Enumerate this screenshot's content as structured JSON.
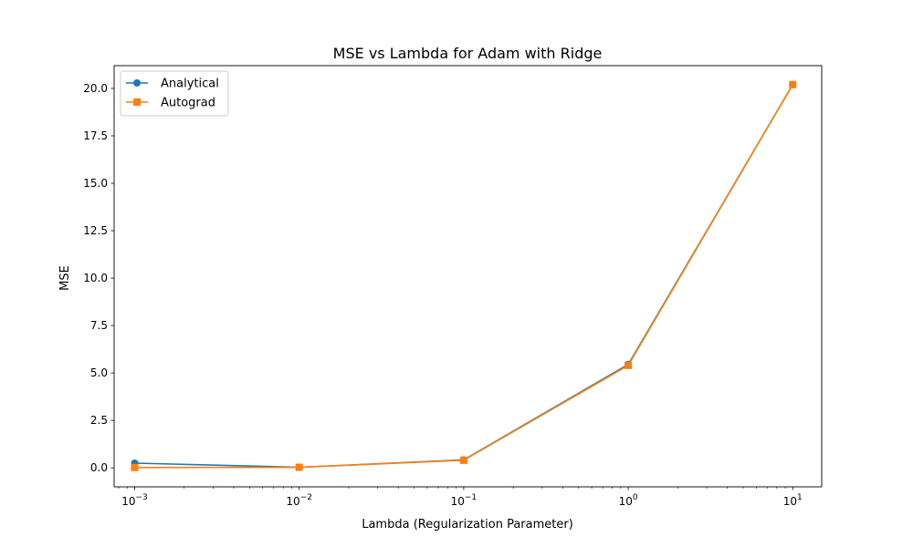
{
  "chart_data": {
    "type": "line",
    "title": "MSE vs Lambda for Adam with Ridge",
    "xlabel": "Lambda (Regularization Parameter)",
    "ylabel": "MSE",
    "xscale": "log",
    "x": [
      0.001,
      0.01,
      0.1,
      1,
      10
    ],
    "xlim": [
      0.00075,
      15
    ],
    "ylim": [
      -1.0,
      21.2
    ],
    "xticks": [
      {
        "value": 0.001,
        "base": "10",
        "exp": "−3"
      },
      {
        "value": 0.01,
        "base": "10",
        "exp": "−2"
      },
      {
        "value": 0.1,
        "base": "10",
        "exp": "−1"
      },
      {
        "value": 1,
        "base": "10",
        "exp": "0"
      },
      {
        "value": 10,
        "base": "10",
        "exp": "1"
      }
    ],
    "yticks": [
      {
        "value": 0.0,
        "label": "0.0"
      },
      {
        "value": 2.5,
        "label": "2.5"
      },
      {
        "value": 5.0,
        "label": "5.0"
      },
      {
        "value": 7.5,
        "label": "7.5"
      },
      {
        "value": 10.0,
        "label": "10.0"
      },
      {
        "value": 12.5,
        "label": "12.5"
      },
      {
        "value": 15.0,
        "label": "15.0"
      },
      {
        "value": 17.5,
        "label": "17.5"
      },
      {
        "value": 20.0,
        "label": "20.0"
      }
    ],
    "grid": false,
    "legend_position": "top-left",
    "series": [
      {
        "name": "Analytical",
        "color": "#1f77b4",
        "marker": "circle",
        "values": [
          0.25,
          0.03,
          0.42,
          5.45,
          20.2
        ]
      },
      {
        "name": "Autograd",
        "color": "#ff7f0e",
        "marker": "square",
        "values": [
          0.02,
          0.03,
          0.4,
          5.4,
          20.2
        ]
      }
    ]
  }
}
